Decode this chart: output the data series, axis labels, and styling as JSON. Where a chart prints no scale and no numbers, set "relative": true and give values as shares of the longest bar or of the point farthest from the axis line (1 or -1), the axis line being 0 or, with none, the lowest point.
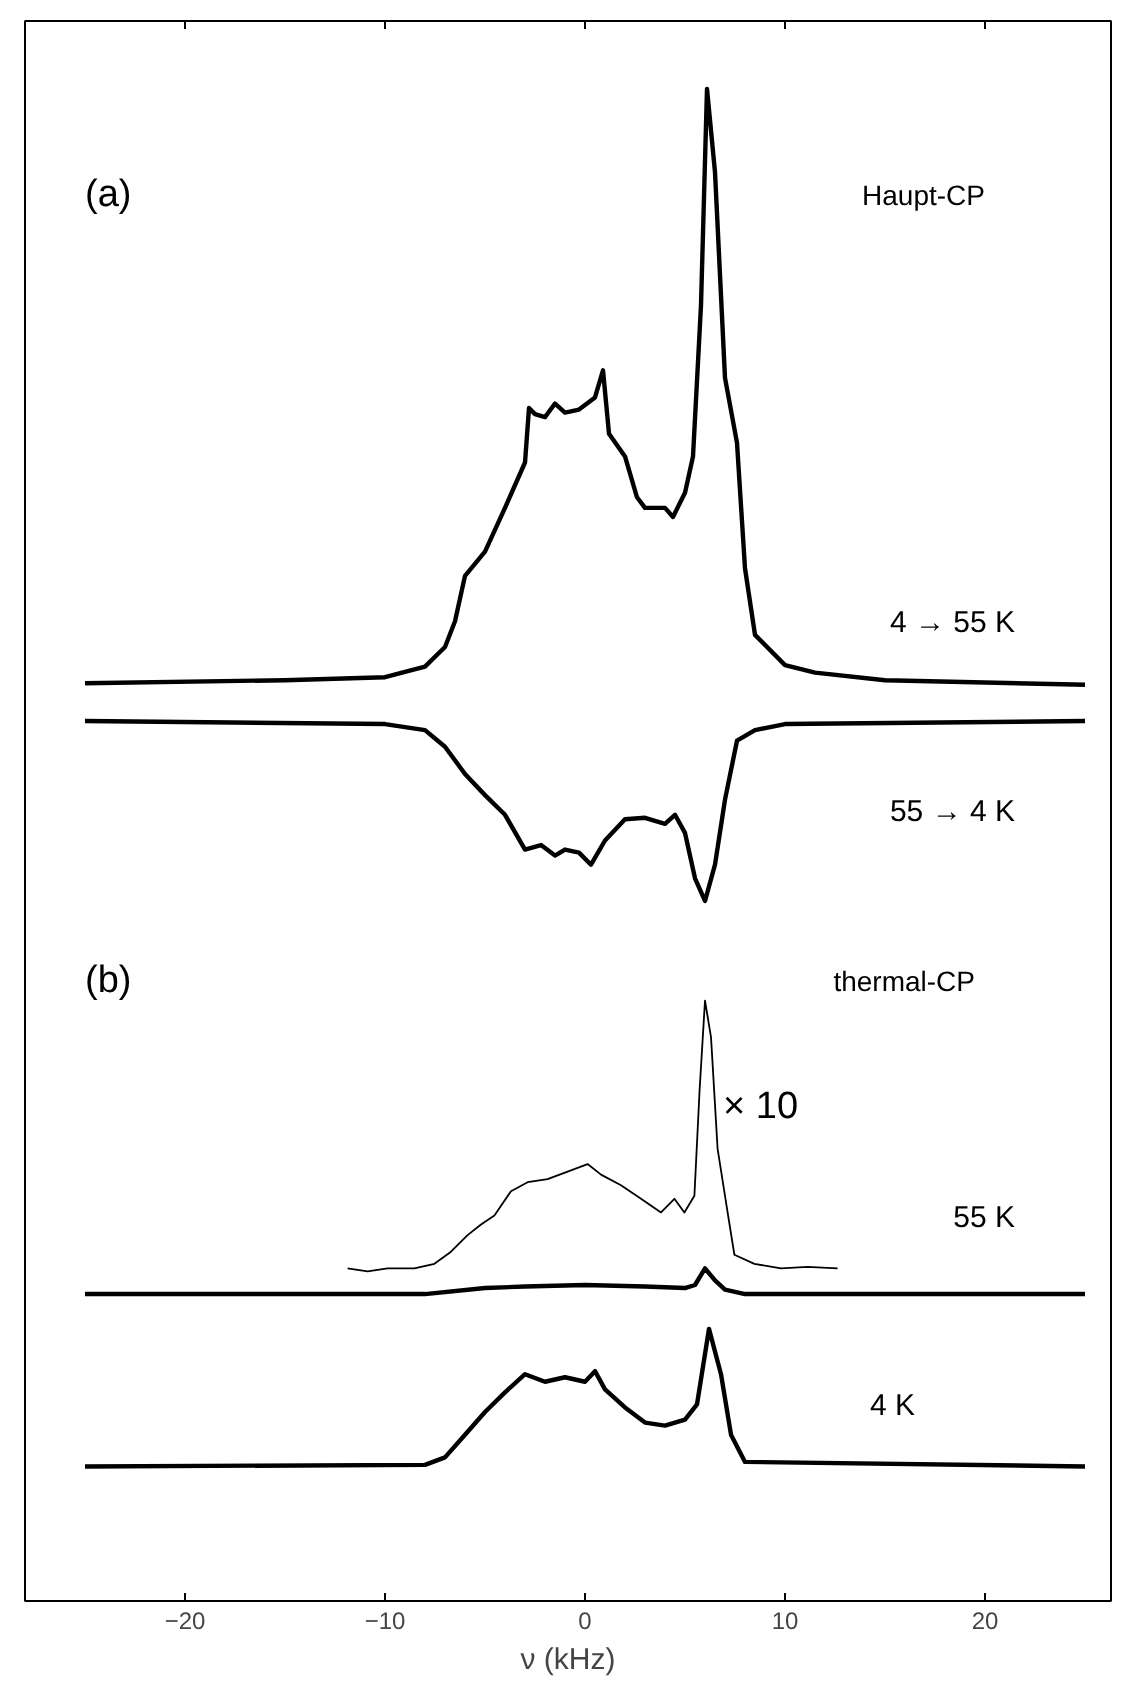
{
  "chart_data": {
    "type": "line",
    "relative": true,
    "xlabel": "ν (kHz)",
    "xlim": [
      -28,
      26.3
    ],
    "xticks": [
      -20,
      -10,
      0,
      10,
      20
    ],
    "tick_labels": "x",
    "grid": false,
    "marker": "none",
    "line_style": "solid",
    "annotations": [
      "(a)",
      "Haupt-CP",
      "(b)",
      "thermal-CP"
    ],
    "series": [
      {
        "name": "4 → 55 K",
        "color": "#000000",
        "x": [
          -25,
          -15,
          -10,
          -8,
          -7,
          -6.5,
          -6,
          -5,
          -4,
          -3,
          -2.8,
          -2.5,
          -2,
          -1.5,
          -1,
          -0.3,
          0.5,
          0.9,
          1.2,
          2,
          2.6,
          3,
          4,
          4.4,
          5,
          5.4,
          5.8,
          6.1,
          6.5,
          7,
          7.6,
          8,
          8.5,
          10,
          11.5,
          15,
          25
        ],
        "values": [
          0.607,
          0.609,
          0.611,
          0.618,
          0.631,
          0.648,
          0.678,
          0.694,
          0.723,
          0.753,
          0.789,
          0.785,
          0.783,
          0.792,
          0.786,
          0.788,
          0.796,
          0.814,
          0.772,
          0.757,
          0.73,
          0.723,
          0.723,
          0.717,
          0.733,
          0.757,
          0.857,
          1.0,
          0.945,
          0.809,
          0.766,
          0.683,
          0.639,
          0.619,
          0.614,
          0.609,
          0.606
        ]
      },
      {
        "name": "55 → 4 K",
        "color": "#000000",
        "x": [
          -25,
          -10,
          -8,
          -7,
          -6,
          -5,
          -4,
          -3,
          -2.2,
          -1.5,
          -1,
          -0.3,
          0.3,
          1,
          2,
          3,
          4,
          4.5,
          5,
          5.5,
          6,
          6.5,
          7,
          7.6,
          8.5,
          10,
          25
        ],
        "values": [
          0.582,
          0.58,
          0.576,
          0.565,
          0.547,
          0.533,
          0.52,
          0.497,
          0.5,
          0.493,
          0.497,
          0.495,
          0.487,
          0.503,
          0.517,
          0.518,
          0.514,
          0.52,
          0.508,
          0.478,
          0.463,
          0.487,
          0.53,
          0.569,
          0.576,
          0.58,
          0.582
        ]
      },
      {
        "name": "× 10",
        "color": "#000000",
        "x": [
          -11.87,
          -10.87,
          -9.87,
          -8.53,
          -7.53,
          -6.7,
          -5.87,
          -5.2,
          -4.53,
          -3.7,
          -2.87,
          -1.87,
          -0.87,
          0.13,
          0.8,
          1.8,
          2.8,
          3.8,
          4.47,
          4.97,
          5.47,
          5.73,
          6.0,
          6.3,
          6.63,
          7.13,
          7.47,
          8.47,
          9.8,
          11.13,
          12.63
        ],
        "values": [
          0.22,
          0.218,
          0.22,
          0.22,
          0.223,
          0.231,
          0.242,
          0.249,
          0.255,
          0.271,
          0.277,
          0.279,
          0.284,
          0.289,
          0.282,
          0.275,
          0.266,
          0.257,
          0.266,
          0.257,
          0.268,
          0.338,
          0.397,
          0.373,
          0.299,
          0.257,
          0.229,
          0.223,
          0.22,
          0.221,
          0.22
        ]
      },
      {
        "name": "55 K",
        "color": "#000000",
        "x": [
          -25,
          -8,
          -5,
          -3,
          0,
          3,
          5,
          5.5,
          6,
          6.5,
          7,
          8,
          25
        ],
        "values": [
          0.203,
          0.203,
          0.207,
          0.208,
          0.209,
          0.208,
          0.207,
          0.209,
          0.22,
          0.212,
          0.206,
          0.203,
          0.203
        ]
      },
      {
        "name": "4 K",
        "color": "#000000",
        "x": [
          -25,
          -8,
          -7,
          -6,
          -5,
          -4,
          -3,
          -2,
          -1,
          0,
          0.5,
          1,
          2,
          3,
          4,
          5,
          5.6,
          6.2,
          6.8,
          7.3,
          8,
          25
        ],
        "values": [
          0.089,
          0.09,
          0.095,
          0.11,
          0.125,
          0.138,
          0.15,
          0.145,
          0.148,
          0.145,
          0.152,
          0.14,
          0.128,
          0.118,
          0.116,
          0.12,
          0.13,
          0.18,
          0.15,
          0.11,
          0.092,
          0.089
        ]
      }
    ]
  }
}
